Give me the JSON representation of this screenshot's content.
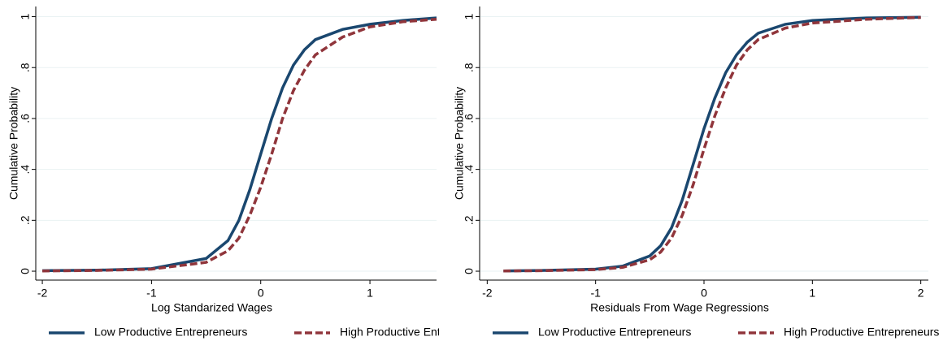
{
  "chart_data": [
    {
      "type": "line",
      "xlabel": "Log Standarized Wages",
      "ylabel": "Cumulative Probability",
      "x": [
        -2,
        -1.5,
        -1,
        -0.5,
        -0.3,
        -0.2,
        -0.1,
        0,
        0.1,
        0.2,
        0.3,
        0.4,
        0.5,
        0.75,
        1,
        1.3,
        1.61
      ],
      "series": [
        {
          "name": "Low Productive Entrepreneurs",
          "color": "#1a476f",
          "dash": false,
          "values": [
            0.002,
            0.004,
            0.01,
            0.05,
            0.12,
            0.2,
            0.32,
            0.46,
            0.6,
            0.72,
            0.81,
            0.87,
            0.91,
            0.95,
            0.97,
            0.985,
            0.995
          ]
        },
        {
          "name": "High Productive Entrepreneurs",
          "color": "#90353b",
          "dash": true,
          "values": [
            0.001,
            0.003,
            0.008,
            0.035,
            0.08,
            0.13,
            0.22,
            0.33,
            0.46,
            0.6,
            0.71,
            0.79,
            0.85,
            0.92,
            0.96,
            0.98,
            0.99
          ]
        }
      ],
      "xlim": [
        -2.06,
        1.61
      ],
      "xticks": [
        -2,
        -1,
        0,
        1
      ],
      "ylim": [
        -0.035,
        1.04
      ],
      "yticks": [
        0,
        {
          "value": 0.2,
          "label": ".2"
        },
        {
          "value": 0.4,
          "label": ".4"
        },
        {
          "value": 0.6,
          "label": ".6"
        },
        {
          "value": 0.8,
          "label": ".8"
        },
        1
      ],
      "grid": true
    },
    {
      "type": "line",
      "xlabel": "Residuals From Wage Regressions",
      "ylabel": "Cumulative Probability",
      "x": [
        -1.85,
        -1.5,
        -1,
        -0.75,
        -0.5,
        -0.4,
        -0.3,
        -0.2,
        -0.1,
        0,
        0.1,
        0.2,
        0.3,
        0.4,
        0.5,
        0.75,
        1,
        1.5,
        2
      ],
      "series": [
        {
          "name": "Low Productive Entrepreneurs",
          "color": "#1a476f",
          "dash": false,
          "values": [
            0.001,
            0.003,
            0.008,
            0.02,
            0.06,
            0.1,
            0.17,
            0.28,
            0.42,
            0.56,
            0.68,
            0.78,
            0.85,
            0.9,
            0.935,
            0.97,
            0.985,
            0.995,
            0.998
          ]
        },
        {
          "name": "High Productive Entrepreneurs",
          "color": "#90353b",
          "dash": true,
          "values": [
            0.001,
            0.002,
            0.006,
            0.015,
            0.045,
            0.075,
            0.13,
            0.22,
            0.34,
            0.48,
            0.61,
            0.72,
            0.81,
            0.87,
            0.91,
            0.955,
            0.975,
            0.99,
            0.997
          ]
        }
      ],
      "xlim": [
        -2.07,
        2.07
      ],
      "xticks": [
        -2,
        -1,
        0,
        1,
        2
      ],
      "ylim": [
        -0.035,
        1.04
      ],
      "yticks": [
        0,
        {
          "value": 0.2,
          "label": ".2"
        },
        {
          "value": 0.4,
          "label": ".4"
        },
        {
          "value": 0.6,
          "label": ".6"
        },
        {
          "value": 0.8,
          "label": ".8"
        },
        1
      ],
      "grid": true
    }
  ]
}
